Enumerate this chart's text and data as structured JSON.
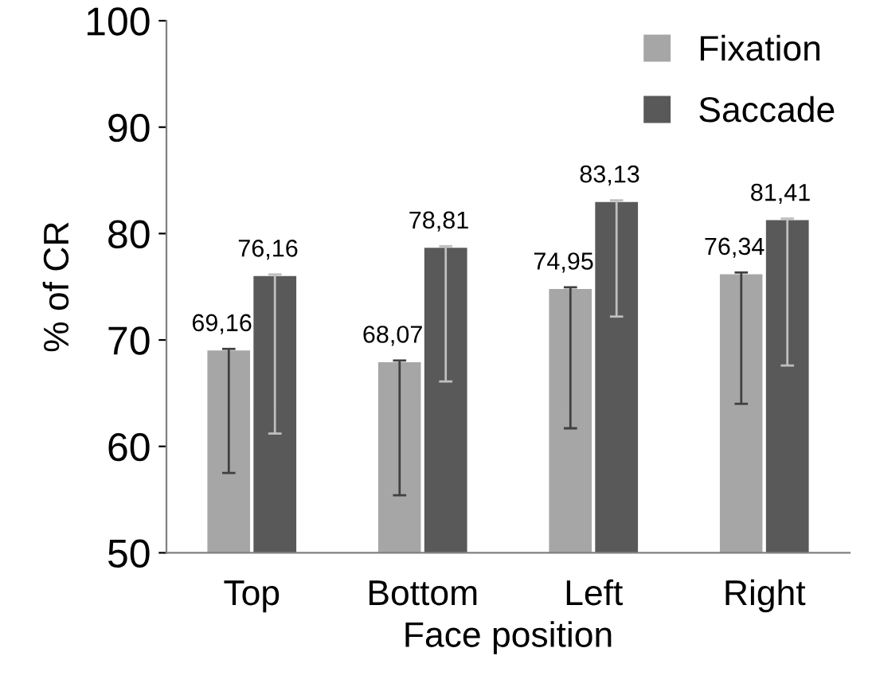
{
  "chart_data": {
    "type": "bar",
    "xlabel": "Face position",
    "ylabel": "% of CR",
    "categories": [
      "Top",
      "Bottom",
      "Left",
      "Right"
    ],
    "series": [
      {
        "name": "Fixation",
        "color": "#a6a6a6",
        "values": [
          69.16,
          68.07,
          74.95,
          76.34
        ],
        "value_labels": [
          "69,16",
          "68,07",
          "74,95",
          "76,34"
        ],
        "errors": [
          [
            57.5,
            69.16
          ],
          [
            55.4,
            68.07
          ],
          [
            61.7,
            74.95
          ],
          [
            64.0,
            76.34
          ]
        ]
      },
      {
        "name": "Saccade",
        "color": "#595959",
        "values": [
          76.16,
          78.81,
          83.13,
          81.41
        ],
        "value_labels": [
          "76,16",
          "78,81",
          "83,13",
          "81,41"
        ],
        "errors": [
          [
            61.2,
            76.16
          ],
          [
            66.1,
            78.81
          ],
          [
            72.2,
            83.13
          ],
          [
            67.6,
            81.41
          ]
        ]
      }
    ],
    "ylim": [
      50,
      100
    ],
    "yticks": [
      50,
      60,
      70,
      80,
      90,
      100
    ],
    "grid": false,
    "legend": "top right"
  }
}
